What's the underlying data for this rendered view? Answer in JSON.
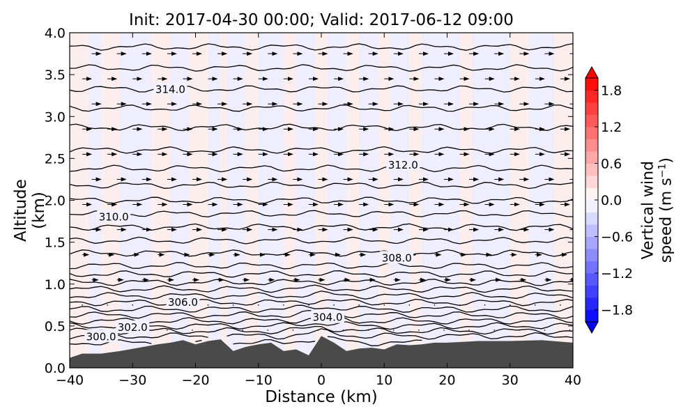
{
  "chart_data": {
    "type": "cross-section",
    "title": "Init: 2017-04-30 00:00; Valid: 2017-06-12 09:00",
    "xlabel": "Distance (km)",
    "ylabel": "Altitude (km)",
    "xlim": [
      -40,
      40
    ],
    "ylim": [
      0.0,
      4.0
    ],
    "xticks": [
      -40,
      -30,
      -20,
      -10,
      0,
      10,
      20,
      30,
      40
    ],
    "xtick_labels": [
      "−40",
      "−30",
      "−20",
      "−10",
      "0",
      "10",
      "20",
      "30",
      "40"
    ],
    "yticks": [
      0.0,
      0.5,
      1.0,
      1.5,
      2.0,
      2.5,
      3.0,
      3.5,
      4.0
    ],
    "ytick_labels": [
      "0.0",
      "0.5",
      "1.0",
      "1.5",
      "2.0",
      "2.5",
      "3.0",
      "3.5",
      "4.0"
    ],
    "filled_field": {
      "name": "Vertical wind speed",
      "colorbar_label": "Vertical wind speed (m s",
      "colorbar_label_sup": "−1",
      "colorbar_label_end": ")",
      "vmin": -2.0,
      "vmax": 2.0,
      "colorbar_ticks": [
        1.8,
        1.2,
        0.6,
        0.0,
        -0.6,
        -1.2,
        -1.8
      ],
      "colorbar_tick_labels": [
        "1.8",
        "1.2",
        "0.6",
        "0.0",
        "−0.6",
        "−1.2",
        "−1.8"
      ],
      "colormap": "bwr",
      "colors": {
        "low": "#0000ff",
        "mid": "#ffffff",
        "high": "#ff0000"
      }
    },
    "contour_labels": [
      {
        "text": "314.0",
        "x": -24,
        "y": 3.33
      },
      {
        "text": "312.0",
        "x": 13,
        "y": 2.43
      },
      {
        "text": "310.0",
        "x": -33,
        "y": 1.81
      },
      {
        "text": "308.0",
        "x": 12,
        "y": 1.32
      },
      {
        "text": "306.0",
        "x": -22,
        "y": 0.79
      },
      {
        "text": "304.0",
        "x": 1,
        "y": 0.61
      },
      {
        "text": "302.0",
        "x": -30,
        "y": 0.49
      },
      {
        "text": "300.0",
        "x": -35,
        "y": 0.38
      }
    ],
    "terrain": {
      "color": "#4a4a4a",
      "x": [
        -40,
        -38,
        -35,
        -32,
        -29,
        -26,
        -24,
        -22,
        -20,
        -18,
        -16,
        -14,
        -12,
        -10,
        -8,
        -6,
        -4,
        -2,
        0,
        2,
        4,
        6,
        8,
        10,
        12,
        14,
        16,
        18,
        20,
        25,
        30,
        35,
        40
      ],
      "y": [
        0.12,
        0.17,
        0.17,
        0.2,
        0.24,
        0.28,
        0.3,
        0.33,
        0.28,
        0.32,
        0.34,
        0.2,
        0.25,
        0.28,
        0.3,
        0.2,
        0.22,
        0.15,
        0.38,
        0.3,
        0.2,
        0.23,
        0.24,
        0.22,
        0.28,
        0.27,
        0.28,
        0.3,
        0.3,
        0.32,
        0.32,
        0.33,
        0.3
      ]
    }
  }
}
